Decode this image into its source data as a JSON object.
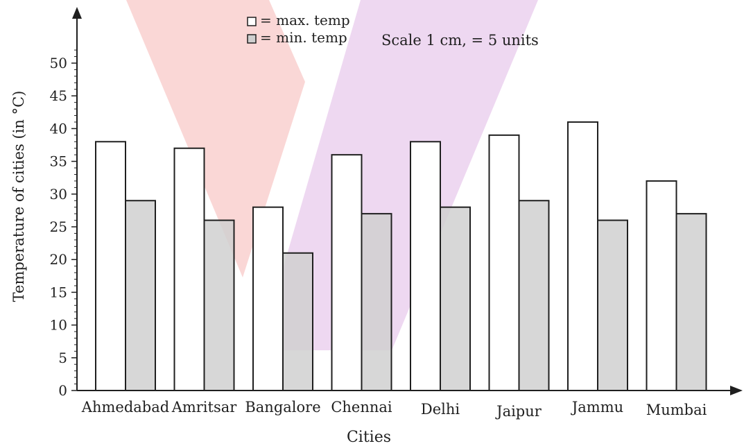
{
  "chart_data": {
    "type": "bar",
    "categories": [
      "Ahmedabad",
      "Amritsar",
      "Bangalore",
      "Chennai",
      "Delhi",
      "Jaipur",
      "Jammu",
      "Mumbai"
    ],
    "series": [
      {
        "name": "max. temp",
        "values": [
          38,
          37,
          28,
          36,
          38,
          39,
          41,
          32
        ],
        "color": "#ffffff"
      },
      {
        "name": "min. temp",
        "values": [
          29,
          26,
          21,
          27,
          28,
          29,
          26,
          27
        ],
        "color": "#d0d0d0"
      }
    ],
    "xlabel": "Cities",
    "ylabel": "Temperature of cities (in °C)",
    "ylim": [
      0,
      53
    ],
    "yticks": [
      0,
      5,
      10,
      15,
      20,
      25,
      30,
      35,
      40,
      45,
      50
    ],
    "grid": false,
    "legend": {
      "position": "top-center",
      "items": [
        {
          "symbol": "□",
          "label": "= max. temp"
        },
        {
          "symbol": "■",
          "label": "= min. temp"
        }
      ]
    },
    "annotation": "Scale 1 cm, = 5 units",
    "background_shapes": [
      {
        "name": "pink-band",
        "color": "#f6b7b4"
      },
      {
        "name": "violet-band",
        "color": "#d6a2dd"
      }
    ]
  }
}
